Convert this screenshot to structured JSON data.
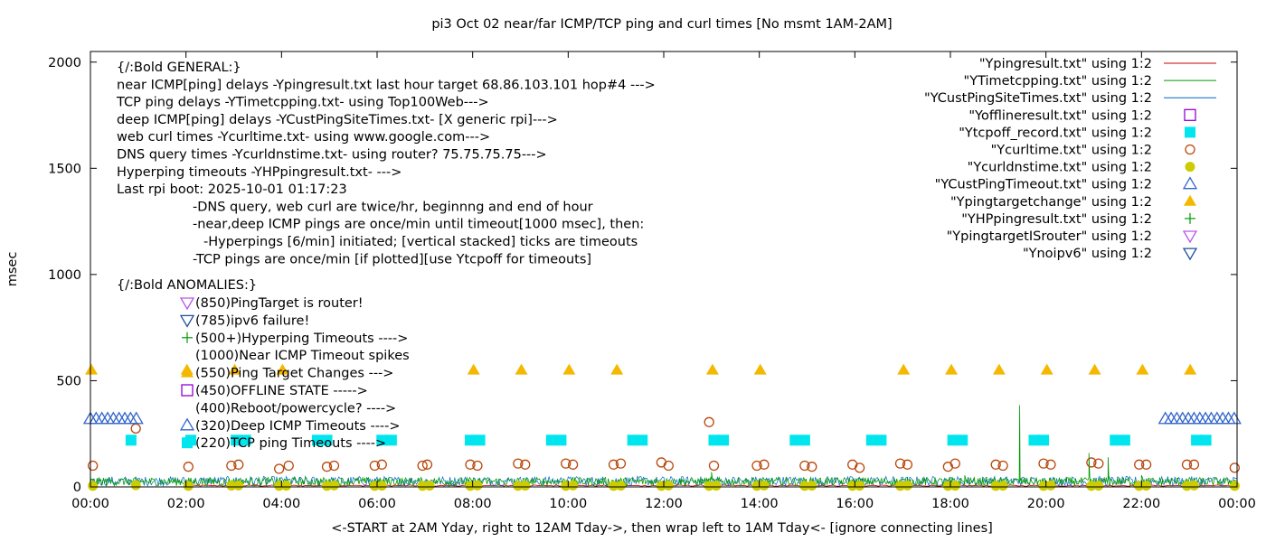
{
  "chart_data": {
    "type": "scatter",
    "title": "pi3 Oct 02  near/far ICMP/TCP ping and curl times [No msmt 1AM-2AM]",
    "xlabel": "<-START at 2AM Yday, right to 12AM Tday->, then wrap left to 1AM Tday<- [ignore connecting lines]",
    "ylabel": "msec",
    "xlim": [
      0,
      24
    ],
    "ylim": [
      0,
      2050
    ],
    "x_ticks": [
      "00:00",
      "02:00",
      "04:00",
      "06:00",
      "08:00",
      "10:00",
      "12:00",
      "14:00",
      "16:00",
      "18:00",
      "20:00",
      "22:00",
      "00:00"
    ],
    "y_ticks": [
      "0",
      "500",
      "1000",
      "1500",
      "2000"
    ],
    "y_tick_values": [
      0,
      500,
      1000,
      1500,
      2000
    ],
    "grid": false,
    "legend_position": "top-right",
    "annotation_lines": [
      "{/:Bold GENERAL:}",
      "near ICMP[ping] delays -Ypingresult.txt last hour target 68.86.103.101 hop#4 --->",
      "TCP ping delays -YTimetcpping.txt- using Top100Web--->",
      "deep ICMP[ping] delays -YCustPingSiteTimes.txt- [X generic rpi]--->",
      "web curl times -Ycurltime.txt- using www.google.com--->",
      "DNS query times -Ycurldnstime.txt- using router? 75.75.75.75--->",
      "Hyperping timeouts -YHPpingresult.txt- --->",
      "Last rpi boot: 2025-10-01 01:17:23",
      "-DNS query, web curl are twice/hr, beginnng and end of hour",
      "-near,deep ICMP pings are once/min until timeout[1000 msec], then:",
      "-Hyperpings [6/min] initiated; [vertical stacked] ticks are timeouts",
      "-TCP pings are once/min [if plotted][use Ytcpoff for timeouts]",
      "{/:Bold ANOMALIES:}"
    ],
    "anomaly_lines": [
      "(850)PingTarget is router!",
      "(785)ipv6 failure!",
      "(500+)Hyperping Timeouts ---->",
      "(1000)Near ICMP Timeout spikes",
      "(550)Ping Target Changes --->",
      "(450)OFFLINE STATE ----->",
      "(400)Reboot/powercycle? ---->",
      "(320)Deep ICMP Timeouts ---->",
      "(220)TCP ping Timeouts ---->"
    ],
    "series": [
      {
        "name": "\"Ypingresult.txt\" using 1:2",
        "style": "line",
        "color": "#cc0000"
      },
      {
        "name": "\"YTimetcpping.txt\" using 1:2",
        "style": "line",
        "color": "#009900",
        "typical_range": [
          5,
          45
        ],
        "spikes": [
          {
            "x": 13.0,
            "y": 70
          },
          {
            "x": 17.9,
            "y": 40
          },
          {
            "x": 18.3,
            "y": 55
          },
          {
            "x": 19.45,
            "y": 385
          },
          {
            "x": 20.9,
            "y": 160
          },
          {
            "x": 21.3,
            "y": 140
          },
          {
            "x": 22.0,
            "y": 55
          }
        ]
      },
      {
        "name": "\"YCustPingSiteTimes.txt\" using 1:2",
        "style": "line",
        "color": "#0066cc",
        "typical_range": [
          5,
          50
        ]
      },
      {
        "name": "\"Yofflineresult.txt\" using 1:2",
        "style": "open-square",
        "color": "#9400d3",
        "points": []
      },
      {
        "name": "\"Ytcpoff_record.txt\" using 1:2",
        "style": "filled-square",
        "color": "#00e5ee",
        "y": 220,
        "x": [
          0.85,
          2.1,
          3.05,
          3.25,
          4.75,
          4.95,
          6.1,
          6.3,
          7.95,
          8.15,
          9.65,
          9.85,
          11.35,
          11.55,
          13.05,
          13.25,
          14.75,
          14.95,
          16.35,
          16.55,
          18.05,
          18.25,
          19.75,
          19.95,
          21.45,
          21.65,
          23.15,
          23.35
        ]
      },
      {
        "name": "\"Ycurltime.txt\" using 1:2",
        "style": "open-circle",
        "color": "#b8470b",
        "x": [
          0.05,
          0.95,
          2.05,
          2.95,
          3.1,
          3.95,
          4.15,
          4.95,
          5.1,
          5.95,
          6.1,
          6.95,
          7.05,
          7.95,
          8.1,
          8.95,
          9.1,
          9.95,
          10.1,
          10.95,
          11.1,
          11.95,
          12.1,
          12.95,
          13.05,
          13.95,
          14.1,
          14.95,
          15.1,
          15.95,
          16.1,
          16.95,
          17.1,
          17.95,
          18.1,
          18.95,
          19.1,
          19.95,
          20.1,
          20.95,
          21.1,
          21.95,
          22.1,
          22.95,
          23.1,
          23.95
        ],
        "y": [
          100,
          275,
          95,
          100,
          105,
          85,
          100,
          95,
          100,
          100,
          105,
          100,
          105,
          105,
          100,
          110,
          105,
          110,
          105,
          105,
          110,
          115,
          100,
          305,
          100,
          100,
          105,
          100,
          95,
          105,
          90,
          110,
          105,
          95,
          110,
          105,
          100,
          110,
          105,
          115,
          110,
          105,
          105,
          105,
          105,
          90
        ]
      },
      {
        "name": "\"Ycurldnstime.txt\" using 1:2",
        "style": "filled-circle",
        "color": "#cccc00",
        "x": [
          0.05,
          0.95,
          2.05,
          2.95,
          3.1,
          3.95,
          4.1,
          4.95,
          5.1,
          5.95,
          6.1,
          6.95,
          7.1,
          7.95,
          8.1,
          8.95,
          9.1,
          9.95,
          10.1,
          10.95,
          11.1,
          11.95,
          12.1,
          12.95,
          13.1,
          13.95,
          14.1,
          14.95,
          15.1,
          15.95,
          16.1,
          16.95,
          17.1,
          17.95,
          18.1,
          18.95,
          19.1,
          19.95,
          20.1,
          20.95,
          21.1,
          21.95,
          22.1,
          22.95,
          23.1,
          23.95
        ],
        "y": [
          5,
          8,
          5,
          6,
          7,
          5,
          6,
          5,
          7,
          5,
          6,
          5,
          6,
          5,
          7,
          5,
          6,
          5,
          7,
          5,
          6,
          5,
          7,
          5,
          6,
          5,
          7,
          5,
          6,
          5,
          6,
          5,
          7,
          5,
          6,
          5,
          6,
          5,
          7,
          5,
          6,
          5,
          6,
          5,
          7,
          5
        ]
      },
      {
        "name": "\"YCustPingTimeout.txt\" using 1:2",
        "style": "open-triangle-up",
        "color": "#3366cc",
        "y": 320,
        "x": [
          0.0,
          0.12,
          0.24,
          0.36,
          0.48,
          0.6,
          0.72,
          0.84,
          0.96,
          22.5,
          22.62,
          22.74,
          22.86,
          22.98,
          23.1,
          23.22,
          23.34,
          23.46,
          23.58,
          23.7,
          23.82,
          23.94
        ]
      },
      {
        "name": "\"Ypingtargetchange\" using 1:2",
        "style": "filled-triangle-up",
        "color": "#f5b800",
        "y": 550,
        "x": [
          0.02,
          2.02,
          3.02,
          4.02,
          8.02,
          9.02,
          10.02,
          11.02,
          13.02,
          14.02,
          17.02,
          18.02,
          19.02,
          20.02,
          21.02,
          22.02,
          23.02
        ]
      },
      {
        "name": "\"YHPpingresult.txt\" using 1:2",
        "style": "plus",
        "color": "#009900",
        "points": []
      },
      {
        "name": "\"YpingtargetISrouter\" using 1:2",
        "style": "open-triangle-down",
        "color": "#bb55ee",
        "points": []
      },
      {
        "name": "\"Ynoipv6\" using 1:2",
        "style": "open-triangle-down",
        "color": "#1f4e99",
        "points": []
      }
    ]
  }
}
